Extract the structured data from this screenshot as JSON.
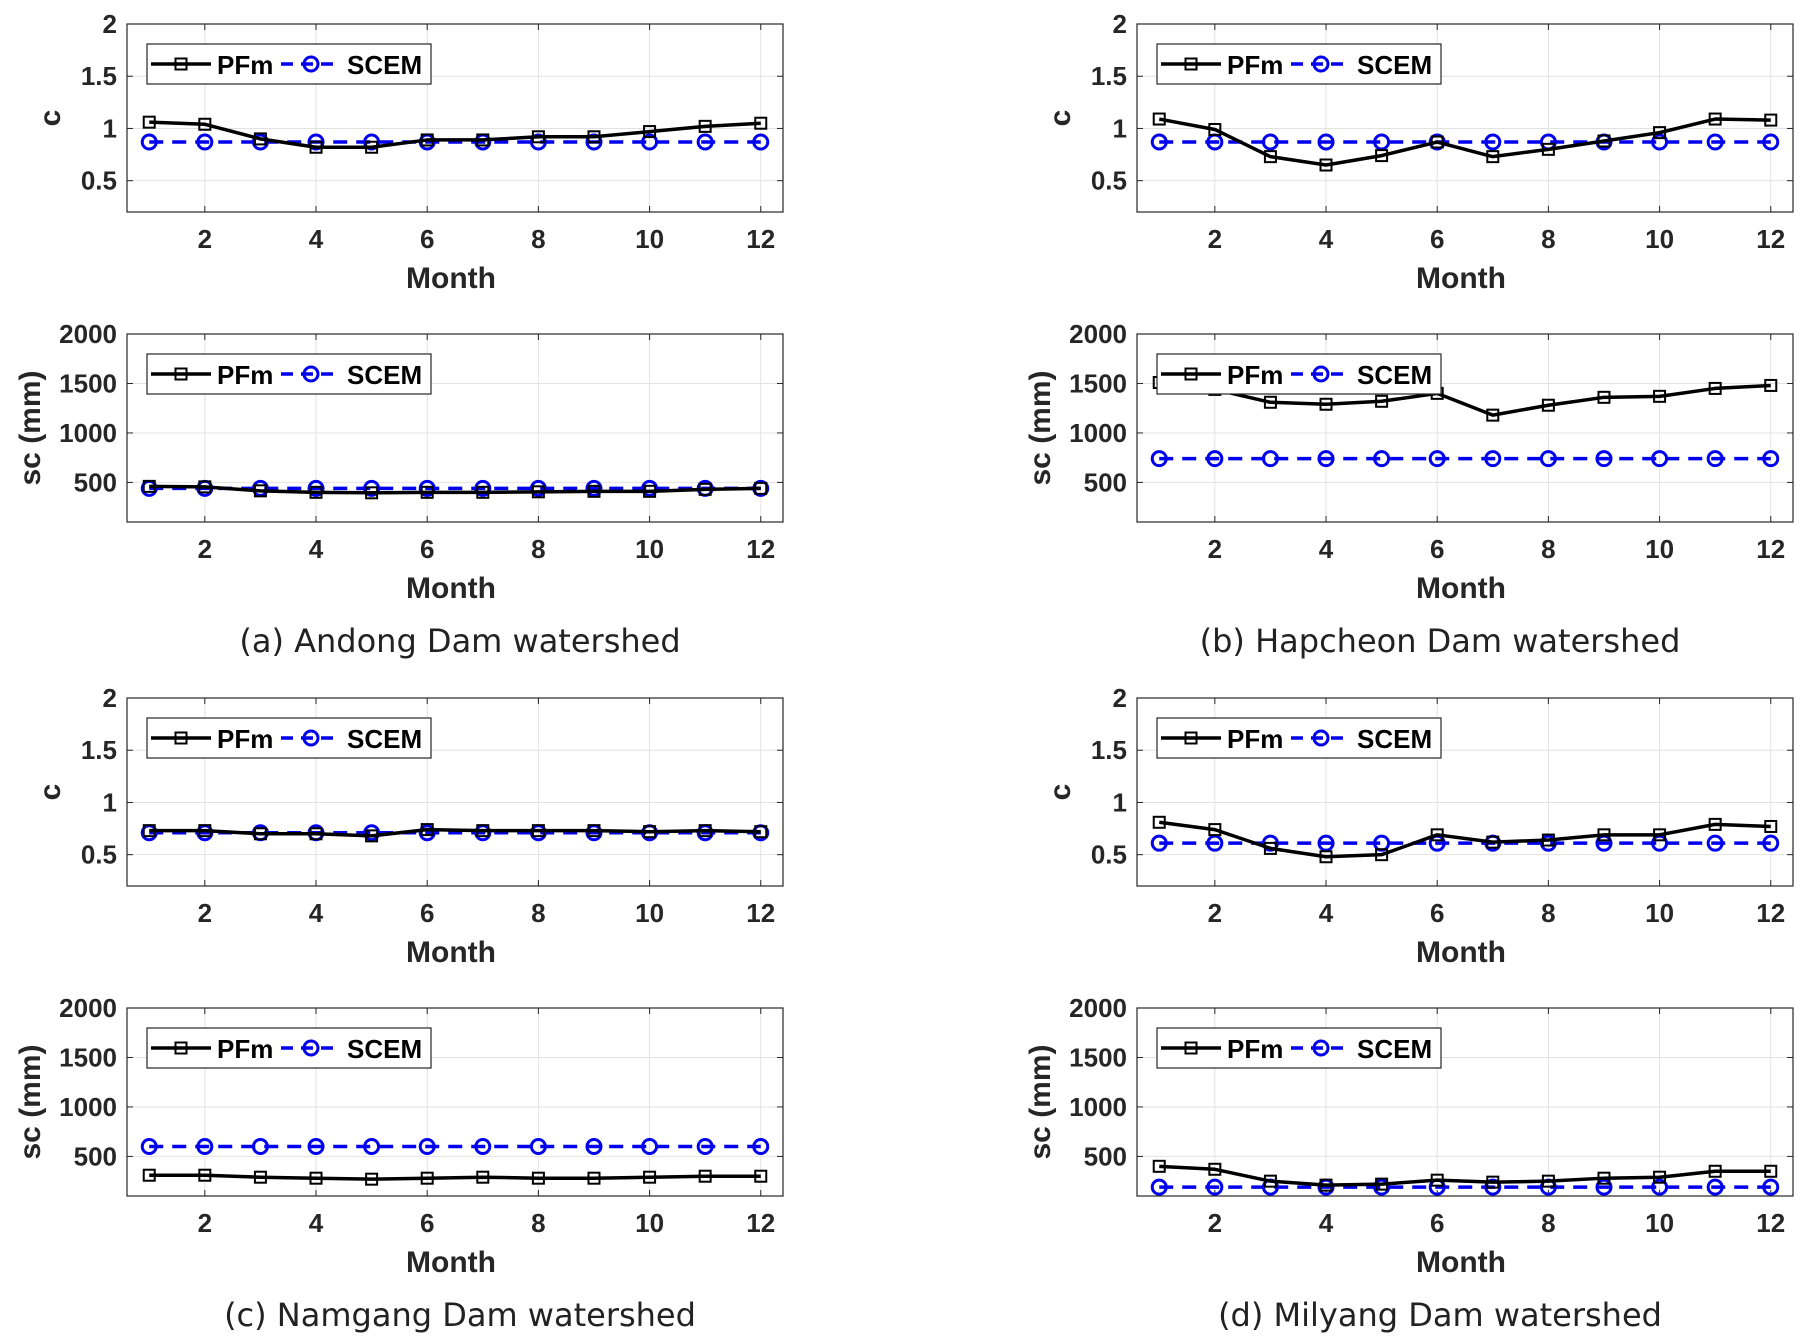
{
  "figure": {
    "captions": {
      "a": "(a) Andong Dam watershed",
      "b": "(b) Hapcheon Dam watershed",
      "c": "(c) Namgang Dam watershed",
      "d": "(d) Milyang Dam watershed"
    },
    "colors": {
      "pfm": "#000000",
      "scem": "#0000ee",
      "grid": "#e2e2e2"
    }
  },
  "chart_data": [
    {
      "id": "a-c",
      "panel": "a",
      "type": "line",
      "title": "",
      "xlabel": "Month",
      "ylabel": "c",
      "xlim": [
        0.6,
        12.4
      ],
      "ylim": [
        0.2,
        2
      ],
      "xticks": [
        2,
        4,
        6,
        8,
        10,
        12
      ],
      "yticks": [
        0.5,
        1,
        1.5,
        2
      ],
      "ytick_labels": [
        "0.5",
        "1",
        "1.5",
        "2"
      ],
      "grid": true,
      "legend": "top-left",
      "x": [
        1,
        2,
        3,
        4,
        5,
        6,
        7,
        8,
        9,
        10,
        11,
        12
      ],
      "series": [
        {
          "name": "PFm",
          "marker": "square",
          "style": "solid",
          "values": [
            1.06,
            1.04,
            0.9,
            0.82,
            0.82,
            0.89,
            0.89,
            0.92,
            0.92,
            0.97,
            1.02,
            1.05
          ]
        },
        {
          "name": "SCEM",
          "marker": "circle",
          "style": "dashed",
          "values": [
            0.87,
            0.87,
            0.87,
            0.87,
            0.87,
            0.87,
            0.87,
            0.87,
            0.87,
            0.87,
            0.87,
            0.87
          ]
        }
      ]
    },
    {
      "id": "a-sc",
      "panel": "a",
      "type": "line",
      "title": "",
      "xlabel": "Month",
      "ylabel": "sc (mm)",
      "xlim": [
        0.6,
        12.4
      ],
      "ylim": [
        100,
        2000
      ],
      "xticks": [
        2,
        4,
        6,
        8,
        10,
        12
      ],
      "yticks": [
        500,
        1000,
        1500,
        2000
      ],
      "ytick_labels": [
        "500",
        "1000",
        "1500",
        "2000"
      ],
      "grid": true,
      "legend": "top-left",
      "x": [
        1,
        2,
        3,
        4,
        5,
        6,
        7,
        8,
        9,
        10,
        11,
        12
      ],
      "series": [
        {
          "name": "PFm",
          "marker": "square",
          "style": "solid",
          "values": [
            460,
            455,
            415,
            400,
            395,
            400,
            400,
            405,
            410,
            410,
            430,
            440
          ]
        },
        {
          "name": "SCEM",
          "marker": "circle",
          "style": "dashed",
          "values": [
            440,
            440,
            440,
            440,
            440,
            440,
            440,
            440,
            440,
            440,
            440,
            440
          ]
        }
      ]
    },
    {
      "id": "b-c",
      "panel": "b",
      "type": "line",
      "title": "",
      "xlabel": "Month",
      "ylabel": "c",
      "xlim": [
        0.6,
        12.4
      ],
      "ylim": [
        0.2,
        2
      ],
      "xticks": [
        2,
        4,
        6,
        8,
        10,
        12
      ],
      "yticks": [
        0.5,
        1,
        1.5,
        2
      ],
      "ytick_labels": [
        "0.5",
        "1",
        "1.5",
        "2"
      ],
      "grid": true,
      "legend": "top-left",
      "x": [
        1,
        2,
        3,
        4,
        5,
        6,
        7,
        8,
        9,
        10,
        11,
        12
      ],
      "series": [
        {
          "name": "PFm",
          "marker": "square",
          "style": "solid",
          "values": [
            1.09,
            0.99,
            0.73,
            0.65,
            0.74,
            0.87,
            0.73,
            0.8,
            0.88,
            0.96,
            1.09,
            1.08
          ]
        },
        {
          "name": "SCEM",
          "marker": "circle",
          "style": "dashed",
          "values": [
            0.87,
            0.87,
            0.87,
            0.87,
            0.87,
            0.87,
            0.87,
            0.87,
            0.87,
            0.87,
            0.87,
            0.87
          ]
        }
      ]
    },
    {
      "id": "b-sc",
      "panel": "b",
      "type": "line",
      "title": "",
      "xlabel": "Month",
      "ylabel": "sc (mm)",
      "xlim": [
        0.6,
        12.4
      ],
      "ylim": [
        100,
        2000
      ],
      "xticks": [
        2,
        4,
        6,
        8,
        10,
        12
      ],
      "yticks": [
        500,
        1000,
        1500,
        2000
      ],
      "ytick_labels": [
        "500",
        "1000",
        "1500",
        "2000"
      ],
      "grid": true,
      "legend": "top-left",
      "x": [
        1,
        2,
        3,
        4,
        5,
        6,
        7,
        8,
        9,
        10,
        11,
        12
      ],
      "series": [
        {
          "name": "PFm",
          "marker": "square",
          "style": "solid",
          "values": [
            1510,
            1440,
            1310,
            1290,
            1320,
            1400,
            1180,
            1280,
            1360,
            1370,
            1450,
            1480
          ]
        },
        {
          "name": "SCEM",
          "marker": "circle",
          "style": "dashed",
          "values": [
            740,
            740,
            740,
            740,
            740,
            740,
            740,
            740,
            740,
            740,
            740,
            740
          ]
        }
      ]
    },
    {
      "id": "c-c",
      "panel": "c",
      "type": "line",
      "title": "",
      "xlabel": "Month",
      "ylabel": "c",
      "xlim": [
        0.6,
        12.4
      ],
      "ylim": [
        0.2,
        2
      ],
      "xticks": [
        2,
        4,
        6,
        8,
        10,
        12
      ],
      "yticks": [
        0.5,
        1,
        1.5,
        2
      ],
      "ytick_labels": [
        "0.5",
        "1",
        "1.5",
        "2"
      ],
      "grid": true,
      "legend": "top-left",
      "x": [
        1,
        2,
        3,
        4,
        5,
        6,
        7,
        8,
        9,
        10,
        11,
        12
      ],
      "series": [
        {
          "name": "PFm",
          "marker": "square",
          "style": "solid",
          "values": [
            0.73,
            0.73,
            0.7,
            0.7,
            0.68,
            0.74,
            0.73,
            0.73,
            0.73,
            0.72,
            0.73,
            0.72
          ]
        },
        {
          "name": "SCEM",
          "marker": "circle",
          "style": "dashed",
          "values": [
            0.71,
            0.71,
            0.71,
            0.71,
            0.71,
            0.71,
            0.71,
            0.71,
            0.71,
            0.71,
            0.71,
            0.71
          ]
        }
      ]
    },
    {
      "id": "c-sc",
      "panel": "c",
      "type": "line",
      "title": "",
      "xlabel": "Month",
      "ylabel": "sc (mm)",
      "xlim": [
        0.6,
        12.4
      ],
      "ylim": [
        100,
        2000
      ],
      "xticks": [
        2,
        4,
        6,
        8,
        10,
        12
      ],
      "yticks": [
        500,
        1000,
        1500,
        2000
      ],
      "ytick_labels": [
        "500",
        "1000",
        "1500",
        "2000"
      ],
      "grid": true,
      "legend": "top-left",
      "x": [
        1,
        2,
        3,
        4,
        5,
        6,
        7,
        8,
        9,
        10,
        11,
        12
      ],
      "series": [
        {
          "name": "PFm",
          "marker": "square",
          "style": "solid",
          "values": [
            310,
            310,
            290,
            280,
            270,
            280,
            290,
            280,
            280,
            290,
            300,
            300
          ]
        },
        {
          "name": "SCEM",
          "marker": "circle",
          "style": "dashed",
          "values": [
            600,
            600,
            600,
            600,
            600,
            600,
            600,
            600,
            600,
            600,
            600,
            600
          ]
        }
      ]
    },
    {
      "id": "d-c",
      "panel": "d",
      "type": "line",
      "title": "",
      "xlabel": "Month",
      "ylabel": "c",
      "xlim": [
        0.6,
        12.4
      ],
      "ylim": [
        0.2,
        2
      ],
      "xticks": [
        2,
        4,
        6,
        8,
        10,
        12
      ],
      "yticks": [
        0.5,
        1,
        1.5,
        2
      ],
      "ytick_labels": [
        "0.5",
        "1",
        "1.5",
        "2"
      ],
      "grid": true,
      "legend": "top-left",
      "x": [
        1,
        2,
        3,
        4,
        5,
        6,
        7,
        8,
        9,
        10,
        11,
        12
      ],
      "series": [
        {
          "name": "PFm",
          "marker": "square",
          "style": "solid",
          "values": [
            0.81,
            0.74,
            0.56,
            0.48,
            0.5,
            0.69,
            0.62,
            0.64,
            0.69,
            0.69,
            0.79,
            0.77
          ]
        },
        {
          "name": "SCEM",
          "marker": "circle",
          "style": "dashed",
          "values": [
            0.61,
            0.61,
            0.61,
            0.61,
            0.61,
            0.61,
            0.61,
            0.61,
            0.61,
            0.61,
            0.61,
            0.61
          ]
        }
      ]
    },
    {
      "id": "d-sc",
      "panel": "d",
      "type": "line",
      "title": "",
      "xlabel": "Month",
      "ylabel": "sc (mm)",
      "xlim": [
        0.6,
        12.4
      ],
      "ylim": [
        100,
        2000
      ],
      "xticks": [
        2,
        4,
        6,
        8,
        10,
        12
      ],
      "yticks": [
        500,
        1000,
        1500,
        2000
      ],
      "ytick_labels": [
        "500",
        "1000",
        "1500",
        "2000"
      ],
      "grid": true,
      "legend": "top-left",
      "x": [
        1,
        2,
        3,
        4,
        5,
        6,
        7,
        8,
        9,
        10,
        11,
        12
      ],
      "series": [
        {
          "name": "PFm",
          "marker": "square",
          "style": "solid",
          "values": [
            400,
            370,
            250,
            210,
            220,
            260,
            240,
            250,
            280,
            290,
            350,
            350
          ]
        },
        {
          "name": "SCEM",
          "marker": "circle",
          "style": "dashed",
          "values": [
            190,
            190,
            190,
            190,
            190,
            190,
            190,
            190,
            190,
            190,
            190,
            190
          ]
        }
      ]
    }
  ]
}
